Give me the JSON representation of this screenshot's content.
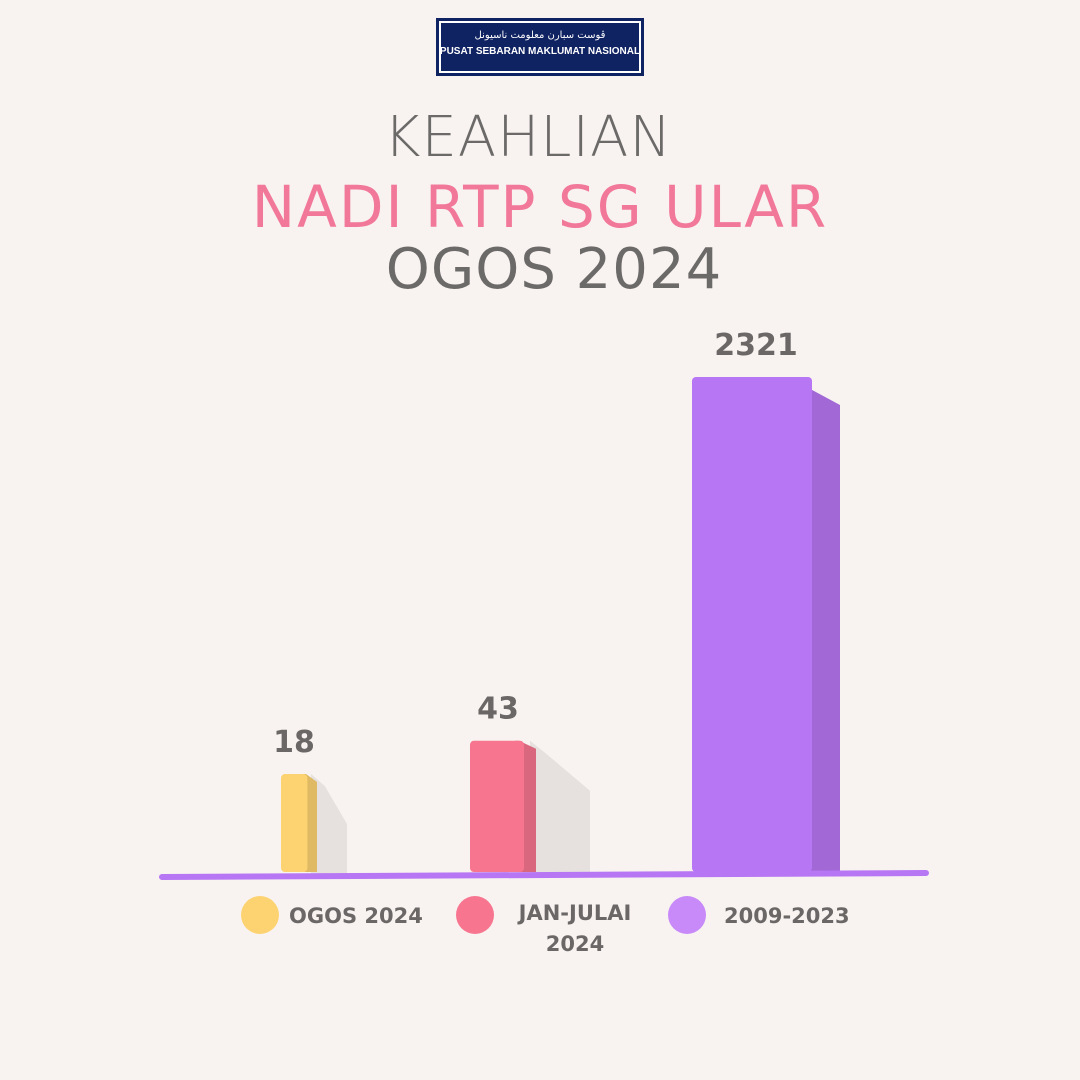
{
  "header": {
    "logo_jawi": "ڤوست سبارن معلومت ناسيونل",
    "logo_text": "PUSAT SEBARAN MAKLUMAT NASIONAL",
    "title_line1": "KEAHLIAN",
    "title_line2": "NADI RTP SG ULAR",
    "title_line3": "OGOS 2024"
  },
  "colors": {
    "background": "#f8f3f1",
    "title_pink": "#f2789a",
    "title_gray": "#6c6a69",
    "axis": "#b776f3"
  },
  "chart_data": {
    "type": "bar",
    "title": "",
    "xlabel": "",
    "ylabel": "",
    "categories": [
      "OGOS 2024",
      "JAN-JULAI 2024",
      "2009-2023"
    ],
    "values": [
      18,
      43,
      2321
    ],
    "data_labels": [
      "18",
      "43",
      "2321"
    ],
    "colors": [
      "#fdd271",
      "#f7758f",
      "#b776f3"
    ],
    "legend": [
      {
        "label": "OGOS 2024",
        "color": "#fdd271"
      },
      {
        "label": "JAN-JULAI 2024",
        "color": "#f7758f"
      },
      {
        "label": "2009-2023",
        "color": "#c78af8"
      }
    ],
    "legend_position": "bottom",
    "grid": false
  }
}
